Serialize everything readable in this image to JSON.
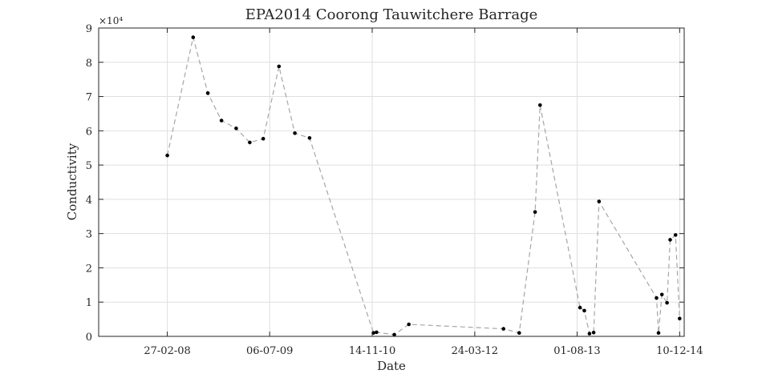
{
  "chart_data": {
    "type": "line",
    "title": "EPA2014 Coorong Tauwitchere Barrage",
    "xlabel": "Date",
    "ylabel": "Conductivity",
    "y_exponent_label": "×10⁴",
    "x_tick_labels": [
      "27-02-08",
      "06-07-09",
      "14-11-10",
      "24-03-12",
      "01-08-13",
      "10-12-14"
    ],
    "x_ticks": [
      "2008-02-27",
      "2009-07-06",
      "2010-11-14",
      "2012-03-24",
      "2013-08-01",
      "2014-12-10"
    ],
    "xlim": [
      "2007-04-01",
      "2015-01-01"
    ],
    "y_tick_labels": [
      "0",
      "1",
      "2",
      "3",
      "4",
      "5",
      "6",
      "7",
      "8",
      "9"
    ],
    "ylim": [
      0,
      90000
    ],
    "grid": true,
    "line_style": "dashed",
    "line_color": "#a6a6a6",
    "marker_color": "#000000",
    "series": [
      {
        "points": [
          {
            "x": "2008-02-27",
            "y": 52800
          },
          {
            "x": "2008-07-01",
            "y": 87300
          },
          {
            "x": "2008-09-10",
            "y": 71000
          },
          {
            "x": "2008-11-15",
            "y": 63000
          },
          {
            "x": "2009-01-25",
            "y": 60700
          },
          {
            "x": "2009-04-01",
            "y": 56600
          },
          {
            "x": "2009-06-05",
            "y": 57700
          },
          {
            "x": "2009-08-20",
            "y": 78800
          },
          {
            "x": "2009-11-05",
            "y": 59300
          },
          {
            "x": "2010-01-15",
            "y": 57900
          },
          {
            "x": "2010-11-20",
            "y": 1000
          },
          {
            "x": "2010-12-05",
            "y": 1200
          },
          {
            "x": "2011-03-01",
            "y": 500
          },
          {
            "x": "2011-05-10",
            "y": 3500
          },
          {
            "x": "2012-08-10",
            "y": 2200
          },
          {
            "x": "2012-10-25",
            "y": 1000
          },
          {
            "x": "2013-01-10",
            "y": 36300
          },
          {
            "x": "2013-02-03",
            "y": 67500
          },
          {
            "x": "2013-08-15",
            "y": 8400
          },
          {
            "x": "2013-09-05",
            "y": 7500
          },
          {
            "x": "2013-09-30",
            "y": 800
          },
          {
            "x": "2013-10-20",
            "y": 1100
          },
          {
            "x": "2013-11-15",
            "y": 39400
          },
          {
            "x": "2014-08-20",
            "y": 11200
          },
          {
            "x": "2014-08-30",
            "y": 1000
          },
          {
            "x": "2014-09-15",
            "y": 12200
          },
          {
            "x": "2014-10-10",
            "y": 9800
          },
          {
            "x": "2014-10-25",
            "y": 28200
          },
          {
            "x": "2014-11-20",
            "y": 29600
          },
          {
            "x": "2014-12-10",
            "y": 5200
          }
        ]
      }
    ]
  }
}
